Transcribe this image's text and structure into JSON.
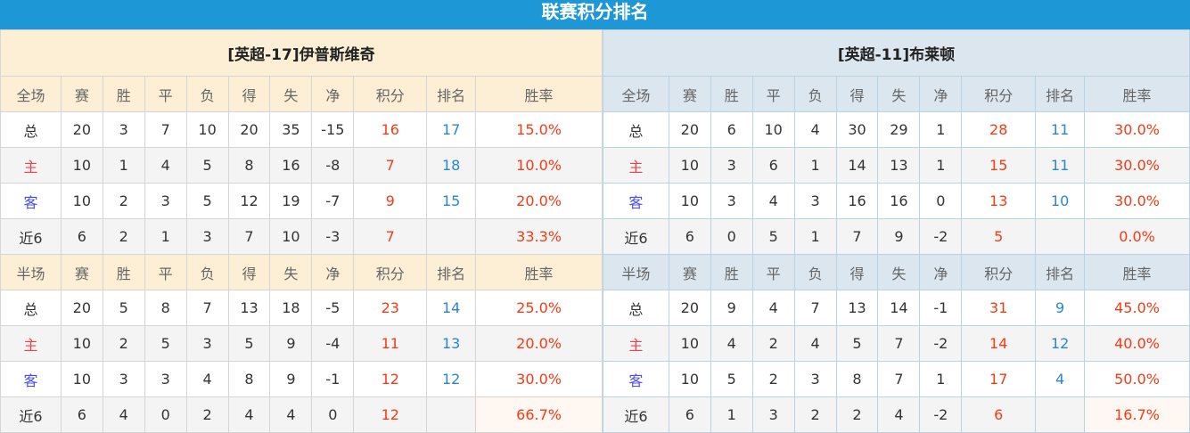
{
  "title": "联赛积分排名",
  "colors": {
    "header_bg": "#1e97d6",
    "points": "#f53a14",
    "rank": "#2a86d2",
    "home_label": "#f0404a",
    "away_label": "#4b4bf5"
  },
  "columns": [
    "赛",
    "胜",
    "平",
    "负",
    "得",
    "失",
    "净",
    "积分",
    "排名",
    "胜率"
  ],
  "teams": [
    {
      "name": "[英超-17]伊普斯维奇",
      "sections": [
        {
          "label": "全场",
          "rows": [
            {
              "type": "总",
              "v": [
                "20",
                "3",
                "7",
                "10",
                "20",
                "35",
                "-15",
                "16",
                "17",
                "15.0%"
              ]
            },
            {
              "type": "主",
              "v": [
                "10",
                "1",
                "4",
                "5",
                "8",
                "16",
                "-8",
                "7",
                "18",
                "10.0%"
              ]
            },
            {
              "type": "客",
              "v": [
                "10",
                "2",
                "3",
                "5",
                "12",
                "19",
                "-7",
                "9",
                "15",
                "20.0%"
              ]
            },
            {
              "type": "近6",
              "v": [
                "6",
                "2",
                "1",
                "3",
                "7",
                "10",
                "-3",
                "7",
                "",
                "33.3%"
              ]
            }
          ]
        },
        {
          "label": "半场",
          "rows": [
            {
              "type": "总",
              "v": [
                "20",
                "5",
                "8",
                "7",
                "13",
                "18",
                "-5",
                "23",
                "14",
                "25.0%"
              ]
            },
            {
              "type": "主",
              "v": [
                "10",
                "2",
                "5",
                "3",
                "5",
                "9",
                "-4",
                "11",
                "13",
                "20.0%"
              ]
            },
            {
              "type": "客",
              "v": [
                "10",
                "3",
                "3",
                "4",
                "8",
                "9",
                "-1",
                "12",
                "12",
                "30.0%"
              ]
            },
            {
              "type": "近6",
              "v": [
                "6",
                "4",
                "0",
                "2",
                "4",
                "4",
                "0",
                "12",
                "",
                "66.7%"
              ]
            }
          ]
        }
      ]
    },
    {
      "name": "[英超-11]布莱顿",
      "sections": [
        {
          "label": "全场",
          "rows": [
            {
              "type": "总",
              "v": [
                "20",
                "6",
                "10",
                "4",
                "30",
                "29",
                "1",
                "28",
                "11",
                "30.0%"
              ]
            },
            {
              "type": "主",
              "v": [
                "10",
                "3",
                "6",
                "1",
                "14",
                "13",
                "1",
                "15",
                "11",
                "30.0%"
              ]
            },
            {
              "type": "客",
              "v": [
                "10",
                "3",
                "4",
                "3",
                "16",
                "16",
                "0",
                "13",
                "10",
                "30.0%"
              ]
            },
            {
              "type": "近6",
              "v": [
                "6",
                "0",
                "5",
                "1",
                "7",
                "9",
                "-2",
                "5",
                "",
                "0.0%"
              ]
            }
          ]
        },
        {
          "label": "半场",
          "rows": [
            {
              "type": "总",
              "v": [
                "20",
                "9",
                "4",
                "7",
                "13",
                "14",
                "-1",
                "31",
                "9",
                "45.0%"
              ]
            },
            {
              "type": "主",
              "v": [
                "10",
                "4",
                "2",
                "4",
                "5",
                "7",
                "-2",
                "14",
                "12",
                "40.0%"
              ]
            },
            {
              "type": "客",
              "v": [
                "10",
                "5",
                "2",
                "3",
                "8",
                "7",
                "1",
                "17",
                "4",
                "50.0%"
              ]
            },
            {
              "type": "近6",
              "v": [
                "6",
                "1",
                "3",
                "2",
                "2",
                "4",
                "-2",
                "6",
                "",
                "16.7%"
              ]
            }
          ]
        }
      ]
    }
  ]
}
